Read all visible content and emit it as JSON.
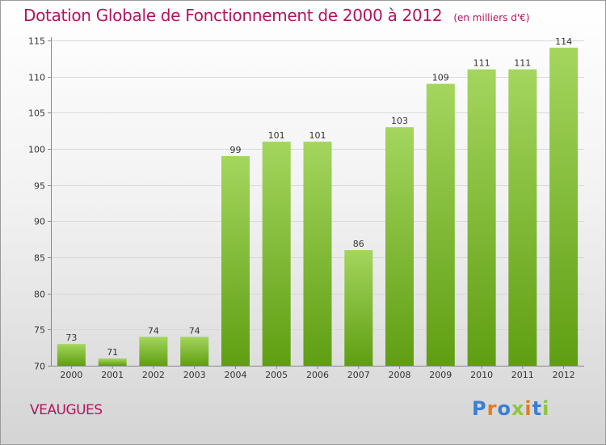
{
  "header": {
    "title": "Dotation Globale de Fonctionnement de 2000 à 2012",
    "subtitle": "(en milliers d'€)"
  },
  "footer": {
    "commune": "VEAUGUES",
    "logo_text": "Proxiti"
  },
  "colors": {
    "title": "#b3135e",
    "bar_top": "#a4d65e",
    "bar_bottom": "#5f9e12",
    "logo_letters": [
      "#3b7fd1",
      "#e8791f",
      "#3b7fd1",
      "#8cc63f",
      "#e8791f",
      "#3b7fd1",
      "#8cc63f"
    ]
  },
  "chart_data": {
    "type": "bar",
    "title": "Dotation Globale de Fonctionnement de 2000 à 2012",
    "subtitle": "(en milliers d'€)",
    "categories": [
      "2000",
      "2001",
      "2002",
      "2003",
      "2004",
      "2005",
      "2006",
      "2007",
      "2008",
      "2009",
      "2010",
      "2011",
      "2012"
    ],
    "values": [
      73,
      71,
      74,
      74,
      99,
      101,
      101,
      86,
      103,
      109,
      111,
      111,
      114
    ],
    "ylim": [
      70,
      115
    ],
    "yticks": [
      70,
      75,
      80,
      85,
      90,
      95,
      100,
      105,
      110,
      115
    ],
    "grid": true,
    "legend": "none"
  }
}
